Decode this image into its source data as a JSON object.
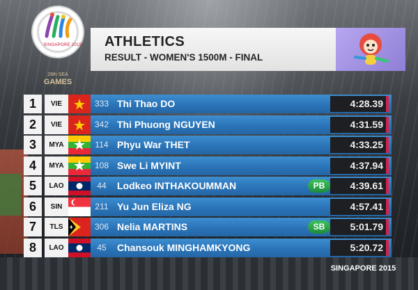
{
  "event": {
    "sport": "ATHLETICS",
    "subtitle": "RESULT - WOMEN'S 1500M - FINAL"
  },
  "logo": {
    "host": "SINGAPORE 2015",
    "edition": "28th SEA",
    "games": "GAMES"
  },
  "footer": {
    "text": "SINGAPORE 2015"
  },
  "results": [
    {
      "rank": "1",
      "country": "VIE",
      "flag": "vietnam-flag-icon",
      "bib": "333",
      "name": "Thi Thao DO",
      "badge": "",
      "time": "4:28.39"
    },
    {
      "rank": "2",
      "country": "VIE",
      "flag": "vietnam-flag-icon",
      "bib": "342",
      "name": "Thi Phuong NGUYEN",
      "badge": "",
      "time": "4:31.59"
    },
    {
      "rank": "3",
      "country": "MYA",
      "flag": "myanmar-flag-icon",
      "bib": "114",
      "name": "Phyu War THET",
      "badge": "",
      "time": "4:33.25"
    },
    {
      "rank": "4",
      "country": "MYA",
      "flag": "myanmar-flag-icon",
      "bib": "108",
      "name": "Swe Li MYINT",
      "badge": "",
      "time": "4:37.94"
    },
    {
      "rank": "5",
      "country": "LAO",
      "flag": "laos-flag-icon",
      "bib": "44",
      "name": "Lodkeo INTHAKOUMMAN",
      "badge": "PB",
      "time": "4:39.61"
    },
    {
      "rank": "6",
      "country": "SIN",
      "flag": "singapore-flag-icon",
      "bib": "211",
      "name": "Yu Jun Eliza NG",
      "badge": "",
      "time": "4:57.41"
    },
    {
      "rank": "7",
      "country": "TLS",
      "flag": "timor-leste-flag-icon",
      "bib": "306",
      "name": "Nelia MARTINS",
      "badge": "SB",
      "time": "5:01.79"
    },
    {
      "rank": "8",
      "country": "LAO",
      "flag": "laos-flag-icon",
      "bib": "45",
      "name": "Chansouk MINGHAMKYONG",
      "badge": "",
      "time": "5:20.72"
    }
  ],
  "colors": {
    "row_bar": "#2a74b8",
    "badge_green": "#1f8a3c",
    "time_accent": "#d8204a"
  }
}
